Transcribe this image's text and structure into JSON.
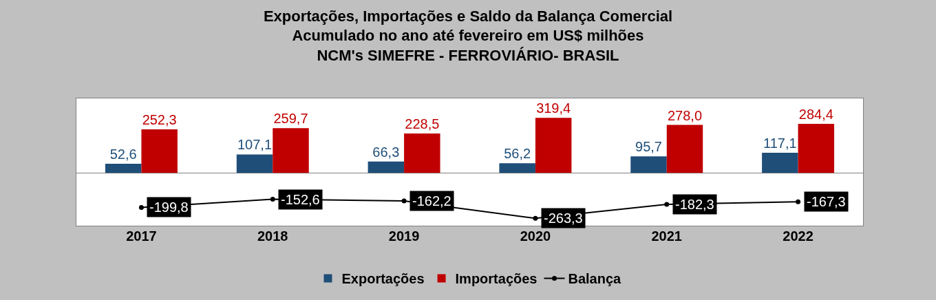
{
  "chart_data": {
    "type": "bar",
    "title": "Exportações, Importações e Saldo da Balança Comercial\nAcumulado no ano até fevereiro em US$ milhões\nNCM's SIMEFRE - FERROVIÁRIO- BRASIL",
    "categories": [
      "2017",
      "2018",
      "2019",
      "2020",
      "2021",
      "2022"
    ],
    "legend": "bottom",
    "series": [
      {
        "name": "Exportações",
        "color": "#1f4e79",
        "values": [
          52.6,
          107.1,
          66.3,
          56.2,
          95.7,
          117.1
        ],
        "value_labels": [
          "52,6",
          "107,1",
          "66,3",
          "56,2",
          "95,7",
          "117,1"
        ]
      },
      {
        "name": "Importações",
        "color": "#c00000",
        "values": [
          252.3,
          259.7,
          228.5,
          319.4,
          278.0,
          284.4
        ],
        "value_labels": [
          "252,3",
          "259,7",
          "228,5",
          "319,4",
          "278,0",
          "284,4"
        ]
      },
      {
        "name": "Balança",
        "type": "line",
        "color": "#000000",
        "marker": "circle",
        "values": [
          -199.8,
          -152.6,
          -162.2,
          -263.3,
          -182.3,
          -167.3
        ],
        "value_labels": [
          "-199,8",
          "-152,6",
          "-162,2",
          "-263,3",
          "-182,3",
          "-167,3"
        ]
      }
    ]
  }
}
